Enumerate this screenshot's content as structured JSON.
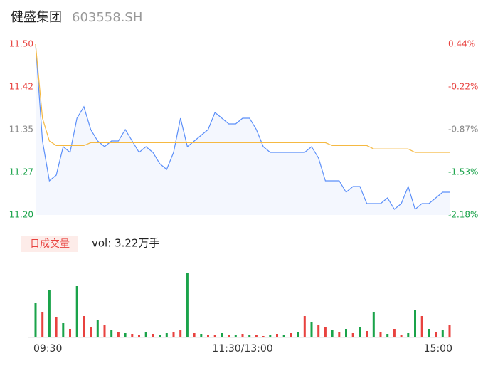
{
  "header": {
    "name": "健盛集团",
    "code": "603558.SH"
  },
  "chart_data": [
    {
      "type": "line",
      "x": [
        0,
        4,
        8,
        12,
        16,
        20,
        24,
        28,
        32,
        36,
        40,
        44,
        48,
        52,
        56,
        60,
        64,
        68,
        72,
        76,
        80,
        84,
        88,
        92,
        96,
        100,
        104,
        108,
        112,
        116,
        120,
        124,
        128,
        132,
        136,
        140,
        144,
        148,
        152,
        156,
        160,
        164,
        168,
        172,
        176,
        180,
        184,
        188,
        192,
        196,
        200,
        204,
        208,
        212,
        216,
        220,
        224,
        228,
        232,
        236,
        240
      ],
      "xlim": [
        0,
        240
      ],
      "xticks": [
        {
          "value": 0,
          "label": "09:30"
        },
        {
          "value": 120,
          "label": "11:30/13:00"
        },
        {
          "value": 240,
          "label": "15:00"
        }
      ],
      "ylim": [
        11.2,
        11.5
      ],
      "yticks": [
        {
          "value": 11.5,
          "label": "11.50"
        },
        {
          "value": 11.425,
          "label": "11.42"
        },
        {
          "value": 11.35,
          "label": "11.35"
        },
        {
          "value": 11.275,
          "label": "11.27"
        },
        {
          "value": 11.2,
          "label": "11.20"
        }
      ],
      "y2lim": [
        -2.18,
        0.44
      ],
      "y2ticks": [
        {
          "value": 0.44,
          "label": "0.44%"
        },
        {
          "value": -0.215,
          "label": "-0.22%"
        },
        {
          "value": -0.87,
          "label": "-0.87%"
        },
        {
          "value": -1.525,
          "label": "-1.53%"
        },
        {
          "value": -2.18,
          "label": "-2.18%"
        }
      ],
      "tick_colors": [
        "#e8423f",
        "#e8423f",
        "#888888",
        "#1aa34a",
        "#1aa34a"
      ],
      "series": [
        {
          "color": "#5b8ff9",
          "area": true,
          "values": [
            11.5,
            11.33,
            11.26,
            11.27,
            11.32,
            11.31,
            11.37,
            11.39,
            11.35,
            11.33,
            11.32,
            11.33,
            11.33,
            11.35,
            11.33,
            11.31,
            11.32,
            11.31,
            11.29,
            11.28,
            11.31,
            11.37,
            11.32,
            11.33,
            11.34,
            11.35,
            11.38,
            11.37,
            11.36,
            11.36,
            11.37,
            11.37,
            11.35,
            11.32,
            11.31,
            11.31,
            11.31,
            11.31,
            11.31,
            11.31,
            11.32,
            11.3,
            11.26,
            11.26,
            11.26,
            11.24,
            11.25,
            11.25,
            11.22,
            11.22,
            11.22,
            11.23,
            11.21,
            11.22,
            11.25,
            11.21,
            11.22,
            11.22,
            11.23,
            11.24,
            11.24
          ]
        },
        {
          "color": "#f5b942",
          "area": false,
          "values": [
            11.5,
            11.37,
            11.33,
            11.322,
            11.322,
            11.322,
            11.322,
            11.322,
            11.327,
            11.327,
            11.327,
            11.327,
            11.327,
            11.327,
            11.327,
            11.327,
            11.327,
            11.327,
            11.327,
            11.327,
            11.327,
            11.327,
            11.327,
            11.327,
            11.327,
            11.327,
            11.327,
            11.327,
            11.327,
            11.327,
            11.327,
            11.327,
            11.327,
            11.327,
            11.327,
            11.327,
            11.327,
            11.327,
            11.327,
            11.327,
            11.327,
            11.327,
            11.327,
            11.322,
            11.322,
            11.322,
            11.322,
            11.322,
            11.322,
            11.316,
            11.316,
            11.316,
            11.316,
            11.316,
            11.316,
            11.31,
            11.31,
            11.31,
            11.31,
            11.31,
            11.31
          ]
        }
      ]
    },
    {
      "type": "bar",
      "badge": "日成交量",
      "summary": "vol: 3.22万手",
      "ylim": [
        0,
        100
      ],
      "up_color": "#e8423f",
      "down_color": "#1aa34a",
      "rising": [
        false,
        true,
        false,
        true,
        false,
        true,
        false,
        true,
        true,
        false,
        true,
        false,
        true,
        false,
        true,
        true,
        false,
        true,
        false,
        false,
        true,
        true,
        false,
        true,
        false,
        true,
        true,
        false,
        true,
        false,
        true,
        false,
        true,
        true,
        false,
        true,
        false,
        true,
        false,
        true,
        false,
        true,
        true,
        false,
        true,
        false,
        true,
        false,
        true,
        false,
        true,
        false,
        true,
        true,
        false,
        false,
        true,
        false,
        true,
        false,
        true
      ],
      "values": [
        48,
        35,
        66,
        28,
        20,
        12,
        72,
        30,
        15,
        25,
        18,
        10,
        8,
        6,
        5,
        4,
        7,
        5,
        3,
        6,
        8,
        10,
        91,
        6,
        5,
        4,
        3,
        6,
        4,
        3,
        5,
        4,
        3,
        2,
        4,
        5,
        3,
        6,
        8,
        30,
        22,
        18,
        15,
        10,
        8,
        12,
        6,
        14,
        9,
        35,
        8,
        5,
        12,
        4,
        6,
        38,
        30,
        12,
        8,
        10,
        18
      ]
    }
  ]
}
